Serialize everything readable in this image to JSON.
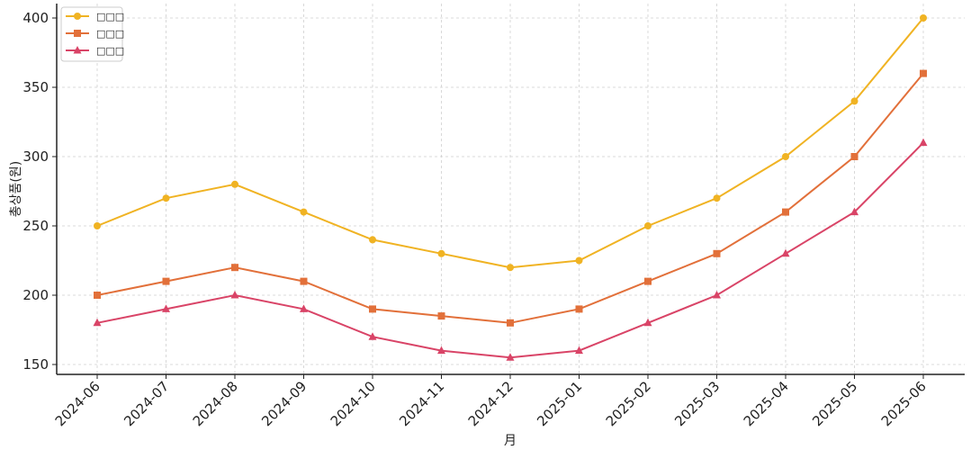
{
  "chart_data": {
    "type": "line",
    "title": "",
    "xlabel": "月",
    "ylabel": "총상품(원)",
    "categories": [
      "2024-06",
      "2024-07",
      "2024-08",
      "2024-09",
      "2024-10",
      "2024-11",
      "2024-12",
      "2025-01",
      "2025-02",
      "2025-03",
      "2025-04",
      "2025-05",
      "2025-06"
    ],
    "ylim": [
      140,
      405
    ],
    "yticks": [
      150,
      200,
      250,
      300,
      350,
      400
    ],
    "grid": true,
    "legend_position": "top-left",
    "series": [
      {
        "name": "□□□",
        "color": "#f0b323",
        "marker": "circle",
        "values": [
          250,
          270,
          280,
          260,
          240,
          230,
          220,
          225,
          250,
          270,
          300,
          340,
          400
        ]
      },
      {
        "name": "□□□",
        "color": "#e2703a",
        "marker": "square",
        "values": [
          200,
          210,
          220,
          210,
          190,
          185,
          180,
          190,
          210,
          230,
          260,
          300,
          360
        ]
      },
      {
        "name": "□□□",
        "color": "#d94467",
        "marker": "triangle",
        "values": [
          180,
          190,
          200,
          190,
          170,
          160,
          155,
          160,
          180,
          200,
          230,
          260,
          310
        ]
      }
    ]
  }
}
